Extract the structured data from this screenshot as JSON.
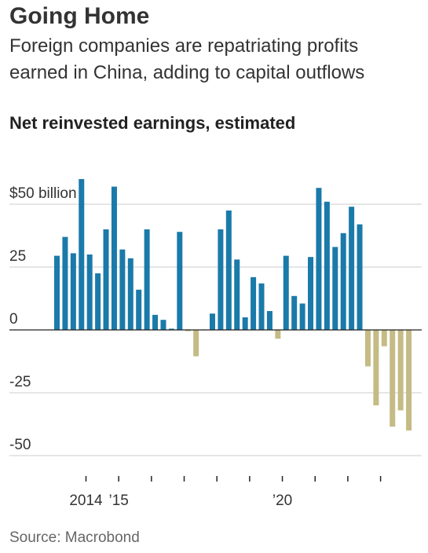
{
  "header": {
    "title": "Going Home",
    "subtitle": "Foreign companies are repatriating profits earned in China, adding to capital outflows"
  },
  "source": "Source: Macrobond",
  "colors": {
    "positive": "#1a7aa9",
    "negative": "#c4bb85",
    "grid": "#cccccc",
    "zero": "#222222"
  },
  "chart_data": {
    "type": "bar",
    "title": "Net reinvested earnings, estimated",
    "frequency": "quarterly",
    "ylim": [
      -50,
      50
    ],
    "yticks": [
      {
        "value": 50,
        "label": "$50 billion"
      },
      {
        "value": 25,
        "label": "25"
      },
      {
        "value": 0,
        "label": "0"
      },
      {
        "value": -25,
        "label": "-25"
      },
      {
        "value": -50,
        "label": "-50"
      }
    ],
    "xtick_labels": [
      {
        "label": "2014",
        "index": 4
      },
      {
        "label": "’15",
        "index": 8
      },
      {
        "label": "’20",
        "index": 28
      }
    ],
    "x": [
      "2013Q1",
      "2013Q2",
      "2013Q3",
      "2013Q4",
      "2014Q1",
      "2014Q2",
      "2014Q3",
      "2014Q4",
      "2015Q1",
      "2015Q2",
      "2015Q3",
      "2015Q4",
      "2016Q1",
      "2016Q2",
      "2016Q3",
      "2016Q4",
      "2017Q1",
      "2017Q2",
      "2017Q3",
      "2017Q4",
      "2018Q1",
      "2018Q2",
      "2018Q3",
      "2018Q4",
      "2019Q1",
      "2019Q2",
      "2019Q3",
      "2019Q4",
      "2020Q1",
      "2020Q2",
      "2020Q3",
      "2020Q4",
      "2021Q1",
      "2021Q2",
      "2021Q3",
      "2021Q4",
      "2022Q1",
      "2022Q2",
      "2022Q3",
      "2022Q4",
      "2023Q1",
      "2023Q2",
      "2023Q3",
      "2023Q4"
    ],
    "values": [
      29.5,
      37,
      30.5,
      60,
      30,
      22.5,
      40,
      57,
      32,
      28.5,
      16,
      40,
      6,
      4,
      0.5,
      39,
      -0.5,
      -10.5,
      0,
      6.5,
      40,
      47.5,
      28,
      5,
      21,
      18.5,
      7.5,
      -3.5,
      29.5,
      13.5,
      10.5,
      29,
      56.5,
      51,
      33,
      38.5,
      49,
      42,
      -14.5,
      -30,
      -6.5,
      -38.5,
      -32,
      -40
    ],
    "grid": true,
    "legend": "none"
  }
}
